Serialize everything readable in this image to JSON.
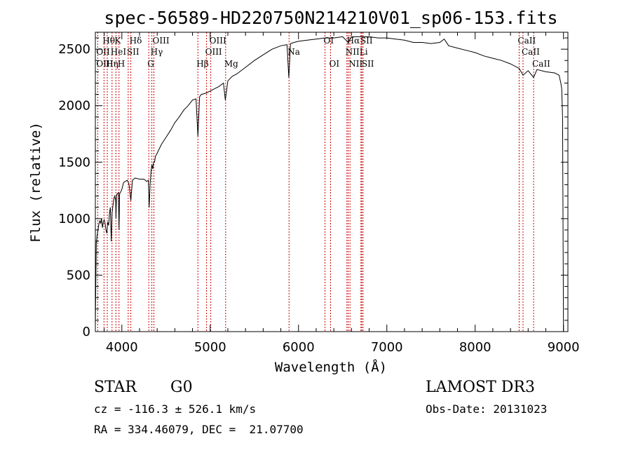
{
  "chart_data": {
    "type": "line",
    "title": "spec-56589-HD220750N214210V01_sp06-153.fits",
    "xlabel": "Wavelength (Å)",
    "ylabel": "Flux (relative)",
    "xlim": [
      3700,
      9050
    ],
    "ylim": [
      0,
      2650
    ],
    "xticks": [
      4000,
      5000,
      6000,
      7000,
      8000,
      9000
    ],
    "yticks": [
      0,
      500,
      1000,
      1500,
      2000,
      2500
    ],
    "grid": false,
    "series": [
      {
        "x": [
          3700,
          3710,
          3720,
          3730,
          3740,
          3750,
          3760,
          3770,
          3780,
          3790,
          3800,
          3810,
          3820,
          3830,
          3840,
          3850,
          3860,
          3870,
          3880,
          3890,
          3900,
          3910,
          3920,
          3930,
          3933,
          3940,
          3950,
          3960,
          3968,
          3975,
          3990,
          4000,
          4020,
          4040,
          4060,
          4080,
          4102,
          4120,
          4150,
          4200,
          4250,
          4280,
          4300,
          4310,
          4320,
          4330,
          4340,
          4350,
          4360,
          4370,
          4380,
          4400,
          4450,
          4500,
          4550,
          4600,
          4650,
          4700,
          4750,
          4800,
          4840,
          4861,
          4880,
          4900,
          4950,
          5000,
          5050,
          5100,
          5150,
          5172,
          5200,
          5250,
          5300,
          5400,
          5500,
          5600,
          5700,
          5800,
          5870,
          5890,
          5896,
          5910,
          5950,
          6000,
          6100,
          6200,
          6300,
          6400,
          6500,
          6563,
          6600,
          6700,
          6800,
          6900,
          7000,
          7100,
          7200,
          7300,
          7400,
          7500,
          7600,
          7650,
          7700,
          7800,
          7900,
          8000,
          8100,
          8200,
          8300,
          8400,
          8498,
          8542,
          8600,
          8662,
          8700,
          8800,
          8900,
          8950,
          8970,
          8980,
          8990,
          9000
        ],
        "y": [
          50,
          780,
          850,
          900,
          950,
          980,
          960,
          1000,
          920,
          970,
          990,
          960,
          900,
          870,
          970,
          940,
          1050,
          1100,
          800,
          1050,
          1120,
          1180,
          1200,
          1160,
          1000,
          1210,
          1220,
          1230,
          900,
          1220,
          1240,
          1260,
          1320,
          1330,
          1340,
          1310,
          1160,
          1340,
          1360,
          1350,
          1350,
          1330,
          1340,
          1100,
          1300,
          1420,
          1480,
          1440,
          1500,
          1500,
          1550,
          1580,
          1660,
          1720,
          1780,
          1850,
          1900,
          1960,
          2000,
          2050,
          2060,
          1730,
          2080,
          2100,
          2110,
          2130,
          2150,
          2170,
          2200,
          2050,
          2220,
          2260,
          2280,
          2340,
          2400,
          2450,
          2500,
          2530,
          2540,
          2250,
          2340,
          2550,
          2560,
          2570,
          2580,
          2590,
          2600,
          2600,
          2610,
          2560,
          2610,
          2610,
          2610,
          2600,
          2600,
          2590,
          2580,
          2560,
          2560,
          2550,
          2560,
          2590,
          2530,
          2510,
          2490,
          2470,
          2440,
          2420,
          2400,
          2370,
          2330,
          2270,
          2310,
          2250,
          2320,
          2300,
          2290,
          2270,
          2200,
          2150,
          1900,
          0
        ]
      }
    ],
    "line_labels": [
      {
        "text": "Hθ",
        "x": 3798,
        "row": 1
      },
      {
        "text": "K",
        "x": 3933,
        "row": 1
      },
      {
        "text": "Hδ",
        "x": 4102,
        "row": 1
      },
      {
        "text": "OIII",
        "x": 4363,
        "row": 1
      },
      {
        "text": "OIII",
        "x": 5007,
        "row": 1
      },
      {
        "text": "OI",
        "x": 6300,
        "row": 1
      },
      {
        "text": "Hα",
        "x": 6563,
        "row": 1
      },
      {
        "text": "SII",
        "x": 6716,
        "row": 1
      },
      {
        "text": "CaII",
        "x": 8498,
        "row": 1
      },
      {
        "text": "OII",
        "x": 3727,
        "row": 2
      },
      {
        "text": "HeI",
        "x": 3889,
        "row": 2
      },
      {
        "text": "SII",
        "x": 4072,
        "row": 2
      },
      {
        "text": "Hγ",
        "x": 4340,
        "row": 2
      },
      {
        "text": "OIII",
        "x": 4959,
        "row": 2
      },
      {
        "text": "Na",
        "x": 5893,
        "row": 2
      },
      {
        "text": "NII",
        "x": 6548,
        "row": 2
      },
      {
        "text": "Li",
        "x": 6707,
        "row": 2
      },
      {
        "text": "CaII",
        "x": 8542,
        "row": 2
      },
      {
        "text": "OIII",
        "x": 3727,
        "row": 3
      },
      {
        "text": "Hη",
        "x": 3835,
        "row": 3
      },
      {
        "text": "H",
        "x": 3968,
        "row": 3
      },
      {
        "text": "G",
        "x": 4305,
        "row": 3
      },
      {
        "text": "Hβ",
        "x": 4861,
        "row": 3
      },
      {
        "text": "Mg",
        "x": 5175,
        "row": 3
      },
      {
        "text": "OI",
        "x": 6363,
        "row": 3
      },
      {
        "text": "NII",
        "x": 6583,
        "row": 3
      },
      {
        "text": "SII",
        "x": 6731,
        "row": 3
      },
      {
        "text": "CaII",
        "x": 8662,
        "row": 3
      }
    ],
    "line_markers": [
      3727,
      3798,
      3835,
      3889,
      3933,
      3968,
      4072,
      4102,
      4305,
      4340,
      4363,
      4861,
      4959,
      5007,
      5175,
      5893,
      6300,
      6363,
      6548,
      6563,
      6583,
      6707,
      6716,
      6731,
      8498,
      8542,
      8662
    ]
  },
  "info": {
    "object_class": "STAR",
    "subclass": "G0",
    "cz": "cz = -116.3 ± 526.1 km/s",
    "radec": "RA = 334.46079, DEC =  21.07700",
    "survey": "LAMOST DR3",
    "obs_date": "Obs-Date: 20131023"
  }
}
